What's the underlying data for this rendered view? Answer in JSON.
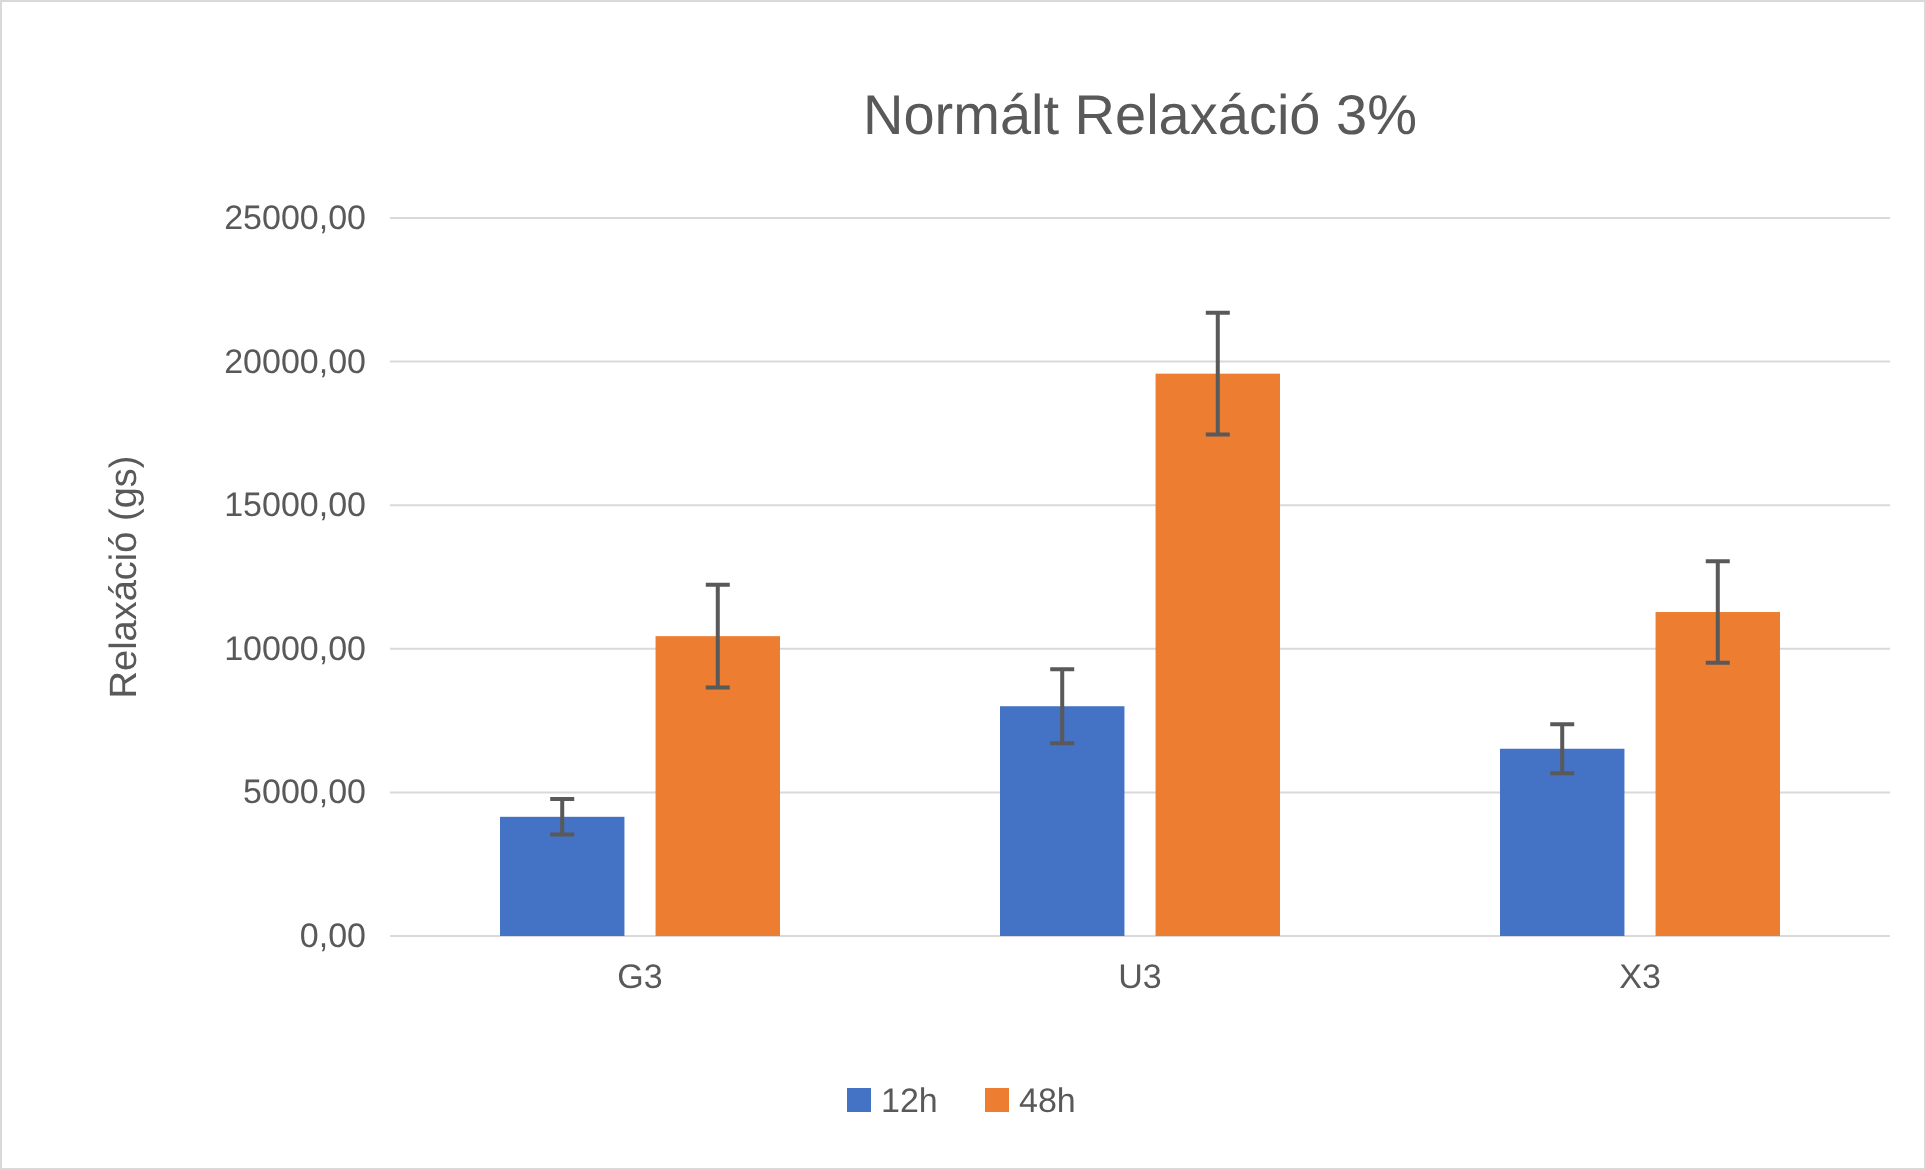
{
  "chart_data": {
    "type": "bar",
    "title": "Normált Relaxáció 3%",
    "ylabel": "Relaxáció (gs)",
    "categories": [
      "G3",
      "U3",
      "X3"
    ],
    "series": [
      {
        "name": "12h",
        "color": "#4472c4",
        "values": [
          4150,
          8000,
          6520
        ],
        "errors": [
          620,
          1290,
          850
        ]
      },
      {
        "name": "48h",
        "color": "#ed7d31",
        "values": [
          10440,
          19580,
          11280
        ],
        "errors": [
          1790,
          2120,
          1770
        ]
      }
    ],
    "ylim": [
      0,
      25000
    ],
    "yticks": [
      {
        "value": 0,
        "label": "0,00"
      },
      {
        "value": 5000,
        "label": "5000,00"
      },
      {
        "value": 10000,
        "label": "10000,00"
      },
      {
        "value": 15000,
        "label": "15000,00"
      },
      {
        "value": 20000,
        "label": "20000,00"
      },
      {
        "value": 25000,
        "label": "25000,00"
      }
    ],
    "grid": "y",
    "legend": "bottom"
  }
}
